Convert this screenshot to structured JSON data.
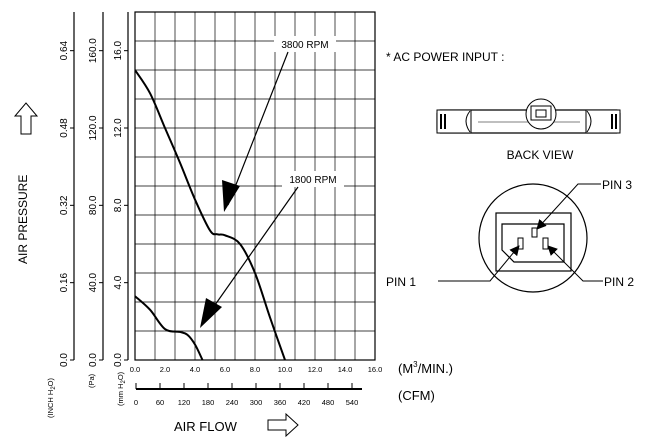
{
  "chart_data": {
    "type": "line",
    "xlabel": "AIR FLOW",
    "ylabel": "AIR PRESSURE",
    "x_units": {
      "primary": "(M3/MIN.)",
      "secondary": "(CFM)"
    },
    "y_units": {
      "inch": "(INCH H2O)",
      "pa": "(Pa)",
      "mm": "(mm H2O)"
    },
    "xlim": [
      0,
      16
    ],
    "ylim": [
      0,
      18
    ],
    "x_ticks": [
      "0.0",
      "2.0",
      "4.0",
      "6.0",
      "8.0",
      "10.0",
      "12.0",
      "14.0",
      "16.0"
    ],
    "cfm_ticks": [
      "0",
      "60",
      "120",
      "180",
      "240",
      "300",
      "360",
      "420",
      "480",
      "540"
    ],
    "y_ticks_mm": [
      "0.0",
      "4.0",
      "8.0",
      "12.0",
      "16.0"
    ],
    "y_ticks_pa": [
      "0.0",
      "40.0",
      "80.0",
      "120.0",
      "160.0"
    ],
    "y_ticks_inch": [
      "0.0",
      "0.16",
      "0.32",
      "0.48",
      "0.64"
    ],
    "grid": true,
    "series": [
      {
        "name": "3800 RPM",
        "x": [
          0,
          1,
          2,
          3,
          4,
          5,
          5.5,
          6,
          7,
          8,
          9,
          10
        ],
        "y": [
          15,
          13.8,
          12.0,
          10.2,
          8.3,
          6.7,
          6.5,
          6.45,
          6.0,
          4.5,
          2.2,
          0
        ]
      },
      {
        "name": "1800 RPM",
        "x": [
          0,
          1,
          2,
          3,
          3.5,
          4,
          4.5
        ],
        "y": [
          3.3,
          2.6,
          1.6,
          1.45,
          1.3,
          0.8,
          0
        ]
      }
    ]
  },
  "labels": {
    "x_unit_primary": "(M",
    "x_unit_primary_sup": "3",
    "x_unit_primary_tail": "/MIN.)",
    "x_unit_secondary": "(CFM)",
    "axis_x": "AIR FLOW",
    "axis_y": "AIR PRESSURE",
    "unit_inch": "(INCH H",
    "unit_inch_sub": "2",
    "unit_inch_tail": "O)",
    "unit_pa": "(Pa)",
    "unit_mm": "(mm H",
    "unit_mm_sub": "2",
    "unit_mm_tail": "O)"
  },
  "annotations": {
    "rpm_high": "3800 RPM",
    "rpm_low": "1800 RPM",
    "ac_power": "* AC POWER INPUT :",
    "back_view": "BACK VIEW",
    "pin1": "PIN 1",
    "pin2": "PIN 2",
    "pin3": "PIN 3"
  }
}
